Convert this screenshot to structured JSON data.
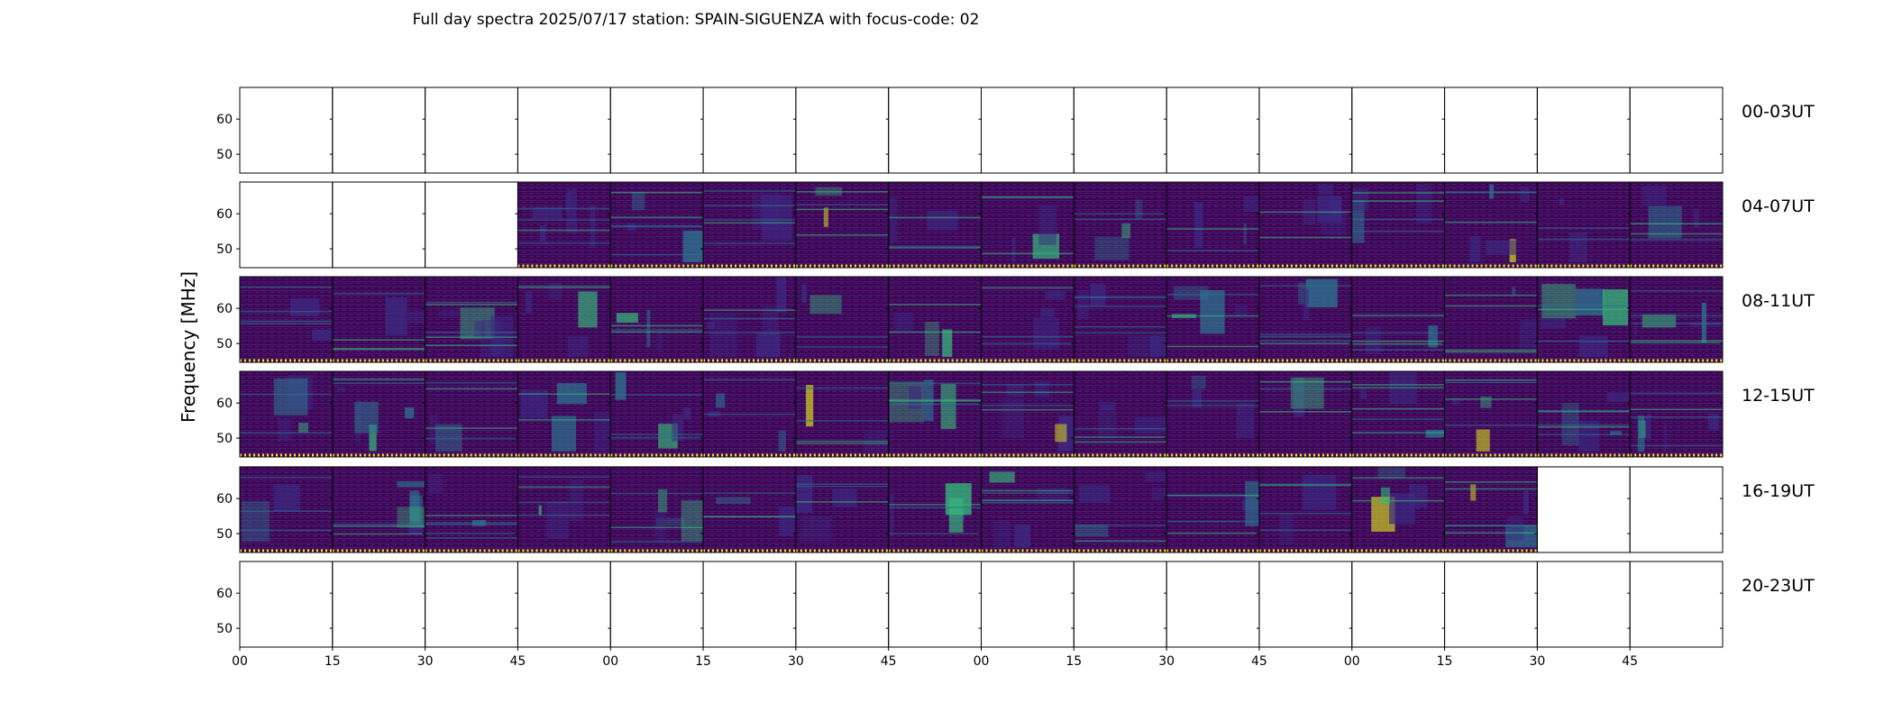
{
  "chart_data": {
    "type": "heatmap",
    "title": "Full day spectra 2025/07/17 station: SPAIN-SIGUENZA with focus-code: 02",
    "ylabel": "Frequency [MHz]",
    "xlabel": "",
    "yticks": [
      "60",
      "50"
    ],
    "xticks": [
      "00",
      "15",
      "30",
      "45",
      "00",
      "15",
      "30",
      "45",
      "00",
      "15",
      "30",
      "45",
      "00",
      "15",
      "30",
      "45"
    ],
    "rows": [
      {
        "label": "00-03UT",
        "panels": [
          0,
          0,
          0,
          0,
          0,
          0,
          0,
          0,
          0,
          0,
          0,
          0,
          0,
          0,
          0,
          0
        ]
      },
      {
        "label": "04-07UT",
        "panels": [
          0,
          0,
          0,
          1,
          1,
          1,
          1,
          1,
          1,
          1,
          1,
          1,
          1,
          1,
          1,
          1
        ]
      },
      {
        "label": "08-11UT",
        "panels": [
          1,
          1,
          1,
          1,
          1,
          1,
          1,
          1,
          1,
          1,
          1,
          1,
          1,
          1,
          1,
          1
        ]
      },
      {
        "label": "12-15UT",
        "panels": [
          1,
          1,
          1,
          1,
          1,
          1,
          1,
          1,
          1,
          1,
          1,
          1,
          1,
          1,
          1,
          1
        ]
      },
      {
        "label": "16-19UT",
        "panels": [
          1,
          1,
          1,
          1,
          1,
          1,
          1,
          1,
          1,
          1,
          1,
          1,
          1,
          1,
          0,
          0
        ]
      },
      {
        "label": "20-23UT",
        "panels": [
          0,
          0,
          0,
          0,
          0,
          0,
          0,
          0,
          0,
          0,
          0,
          0,
          0,
          0,
          0,
          0
        ]
      }
    ]
  },
  "colors": {
    "background": "#440154",
    "low": "#3b2a82",
    "mid": "#2c728e",
    "high": "#35b779",
    "peak": "#dde318",
    "baseline": "#fde725"
  }
}
